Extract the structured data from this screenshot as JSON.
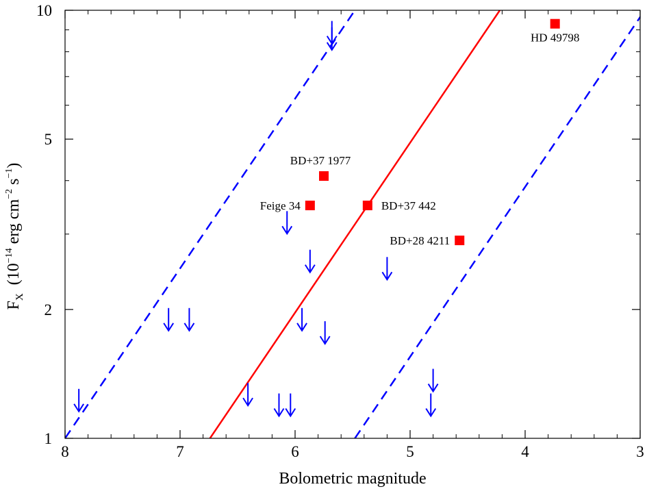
{
  "chart_data": {
    "type": "scatter",
    "title": "",
    "xlabel": "Bolometric magnitude",
    "ylabel": {
      "main": "F",
      "subscript": "X",
      "units_prefix": "(10",
      "units_exp1": "−14",
      "units_mid": " erg cm",
      "units_exp2": "−2",
      "units_mid2": " s",
      "units_exp3": "−1",
      "units_suffix": ")"
    },
    "xlim": [
      8,
      3
    ],
    "ylim": [
      1,
      10
    ],
    "y_scale": "log",
    "x_ticks": [
      "8",
      "7",
      "6",
      "5",
      "4",
      "3"
    ],
    "y_ticks": [
      "1",
      "2",
      "5",
      "10"
    ],
    "colors": {
      "detections": "#ff0000",
      "upper_limits": "#0000ff",
      "fit_line": "#ff0000",
      "bound_lines": "#0000ff"
    },
    "detections": [
      {
        "label": "HD 49798",
        "x": 3.74,
        "y": 9.3
      },
      {
        "label": "BD+37 1977",
        "x": 5.75,
        "y": 4.1
      },
      {
        "label": "Feige 34",
        "x": 5.87,
        "y": 3.5
      },
      {
        "label": "BD+37 442",
        "x": 5.37,
        "y": 3.5
      },
      {
        "label": "BD+28 4211",
        "x": 4.57,
        "y": 2.9
      }
    ],
    "upper_limits": [
      {
        "x": 5.68,
        "y": 8.9
      },
      {
        "x": 5.68,
        "y": 8.6
      },
      {
        "x": 6.07,
        "y": 3.2
      },
      {
        "x": 5.87,
        "y": 2.6
      },
      {
        "x": 5.2,
        "y": 2.5
      },
      {
        "x": 7.1,
        "y": 1.9
      },
      {
        "x": 6.92,
        "y": 1.9
      },
      {
        "x": 5.94,
        "y": 1.9
      },
      {
        "x": 5.74,
        "y": 1.77
      },
      {
        "x": 7.88,
        "y": 1.23
      },
      {
        "x": 6.41,
        "y": 1.27
      },
      {
        "x": 6.14,
        "y": 1.2
      },
      {
        "x": 6.04,
        "y": 1.2
      },
      {
        "x": 4.8,
        "y": 1.37
      },
      {
        "x": 4.82,
        "y": 1.2
      }
    ],
    "lines": [
      {
        "name": "",
        "style": "solid",
        "points": [
          [
            6.74,
            1
          ],
          [
            4.22,
            10
          ]
        ]
      },
      {
        "name": "",
        "style": "dashed",
        "points": [
          [
            8.0,
            1
          ],
          [
            5.48,
            10
          ]
        ]
      },
      {
        "name": "",
        "style": "dashed",
        "points": [
          [
            5.48,
            1
          ],
          [
            2.96,
            10
          ]
        ]
      }
    ]
  }
}
